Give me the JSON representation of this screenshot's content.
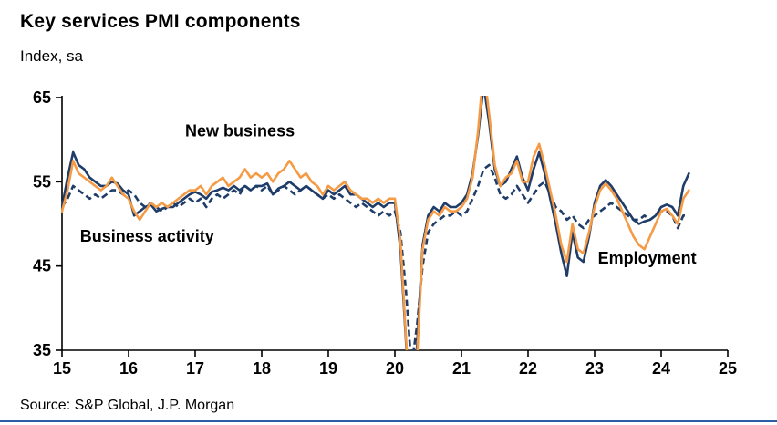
{
  "page": {
    "source": "Source: S&P Global, J.P. Morgan"
  },
  "colors": {
    "navy": "#1f3d68",
    "orange": "#f59b45",
    "axis": "#000000",
    "footer_bar": "#2d5da7",
    "text": "#000000"
  },
  "chart_data": {
    "type": "line",
    "title": "Key services PMI components",
    "subtitle": "Index, sa",
    "xlabel": "",
    "ylabel": "",
    "xlim": [
      15,
      25
    ],
    "ylim": [
      35,
      65
    ],
    "x_ticks": [
      15,
      16,
      17,
      18,
      19,
      20,
      21,
      22,
      23,
      24,
      25
    ],
    "y_ticks": [
      35,
      45,
      55,
      65
    ],
    "grid": false,
    "legend_position": "inline-annotations",
    "x_start": 15.0,
    "x_step": 0.0833333,
    "x_unit": "year (monthly data, 2015=15)",
    "series": [
      {
        "name": "Employment",
        "color": "#1f3d68",
        "style": "dashed",
        "values": [
          52.0,
          53.0,
          54.5,
          54.0,
          53.5,
          53.0,
          53.5,
          53.0,
          53.5,
          54.0,
          54.0,
          53.5,
          54.0,
          53.5,
          52.5,
          52.0,
          52.5,
          52.0,
          51.5,
          52.0,
          52.5,
          52.0,
          52.5,
          53.0,
          52.5,
          53.0,
          52.0,
          53.0,
          53.5,
          53.0,
          53.5,
          54.0,
          53.5,
          54.5,
          54.0,
          54.5,
          54.0,
          54.5,
          53.5,
          54.0,
          54.5,
          54.0,
          53.5,
          54.0,
          54.5,
          54.0,
          53.5,
          53.0,
          53.5,
          53.0,
          53.5,
          53.0,
          52.5,
          52.0,
          52.5,
          52.0,
          51.5,
          51.0,
          51.5,
          51.0,
          51.5,
          49.0,
          42.0,
          33.0,
          38.0,
          45.0,
          49.0,
          50.0,
          50.5,
          51.0,
          51.0,
          51.5,
          51.0,
          51.5,
          53.0,
          54.5,
          56.5,
          57.0,
          55.5,
          53.5,
          53.0,
          53.5,
          54.5,
          53.5,
          52.5,
          53.5,
          54.5,
          55.0,
          53.5,
          52.0,
          51.5,
          50.5,
          51.0,
          50.0,
          49.5,
          50.5,
          51.0,
          51.5,
          52.0,
          52.5,
          52.0,
          51.5,
          51.0,
          50.5,
          50.5,
          51.0,
          50.5,
          51.0,
          51.5,
          51.5,
          51.0,
          49.5,
          51.0,
          51.0
        ]
      },
      {
        "name": "Business activity",
        "color": "#1f3d68",
        "style": "solid",
        "values": [
          52.0,
          55.5,
          58.5,
          57.0,
          56.5,
          55.5,
          55.0,
          54.5,
          54.5,
          55.0,
          54.8,
          54.0,
          53.5,
          51.0,
          51.5,
          52.0,
          52.3,
          51.5,
          51.8,
          52.0,
          52.0,
          52.5,
          53.0,
          53.5,
          53.8,
          53.5,
          53.0,
          53.8,
          54.0,
          54.3,
          54.0,
          54.5,
          54.0,
          54.5,
          54.0,
          54.5,
          54.5,
          54.8,
          53.5,
          54.2,
          54.5,
          55.0,
          54.5,
          54.0,
          54.5,
          54.0,
          53.5,
          53.0,
          54.0,
          53.5,
          54.0,
          54.5,
          53.5,
          53.5,
          53.0,
          52.5,
          52.0,
          52.5,
          52.0,
          52.5,
          52.5,
          47.0,
          36.0,
          23.7,
          35.5,
          47.5,
          51.0,
          52.0,
          51.5,
          52.5,
          52.0,
          52.0,
          52.5,
          53.5,
          56.0,
          60.5,
          66.5,
          62.0,
          56.5,
          54.5,
          55.0,
          56.5,
          58.0,
          55.5,
          54.0,
          56.5,
          58.5,
          56.0,
          53.0,
          50.0,
          46.5,
          43.8,
          49.0,
          46.0,
          45.5,
          48.5,
          52.5,
          54.5,
          55.2,
          54.5,
          53.5,
          52.5,
          51.5,
          50.5,
          50.0,
          50.3,
          50.5,
          51.0,
          52.0,
          52.3,
          52.0,
          51.0,
          54.5,
          56.0
        ]
      },
      {
        "name": "New business",
        "color": "#f59b45",
        "style": "solid",
        "values": [
          51.5,
          54.0,
          57.5,
          56.0,
          55.5,
          55.0,
          54.5,
          54.0,
          54.5,
          55.5,
          54.5,
          53.5,
          53.0,
          51.5,
          50.5,
          51.5,
          52.5,
          52.0,
          52.5,
          52.0,
          52.5,
          53.0,
          53.5,
          54.0,
          54.0,
          54.5,
          53.5,
          54.5,
          55.0,
          55.5,
          54.5,
          55.0,
          55.5,
          56.5,
          55.5,
          56.0,
          55.5,
          56.0,
          55.0,
          56.0,
          56.5,
          57.5,
          56.5,
          55.5,
          56.0,
          55.0,
          54.5,
          53.5,
          54.5,
          54.0,
          54.5,
          55.0,
          54.0,
          53.5,
          53.0,
          53.0,
          52.5,
          53.0,
          52.5,
          53.0,
          53.0,
          48.0,
          36.5,
          25.0,
          34.0,
          47.0,
          50.5,
          51.5,
          51.0,
          52.0,
          51.5,
          51.5,
          52.0,
          53.0,
          55.5,
          61.0,
          68.5,
          63.0,
          57.0,
          54.5,
          55.5,
          56.0,
          57.5,
          55.0,
          55.0,
          58.0,
          59.5,
          57.0,
          54.0,
          51.0,
          47.5,
          45.5,
          50.0,
          47.0,
          46.5,
          49.0,
          52.0,
          54.0,
          54.8,
          54.0,
          53.0,
          51.5,
          50.0,
          48.5,
          47.5,
          47.0,
          48.5,
          50.0,
          51.5,
          51.8,
          51.0,
          50.0,
          53.0,
          54.0
        ]
      }
    ],
    "annotations": [
      {
        "text": "New business",
        "x": 16.85,
        "y": 60.4
      },
      {
        "text": "Business activity",
        "x": 15.27,
        "y": 47.9
      },
      {
        "text": "Employment",
        "x": 23.05,
        "y": 45.3
      }
    ]
  }
}
